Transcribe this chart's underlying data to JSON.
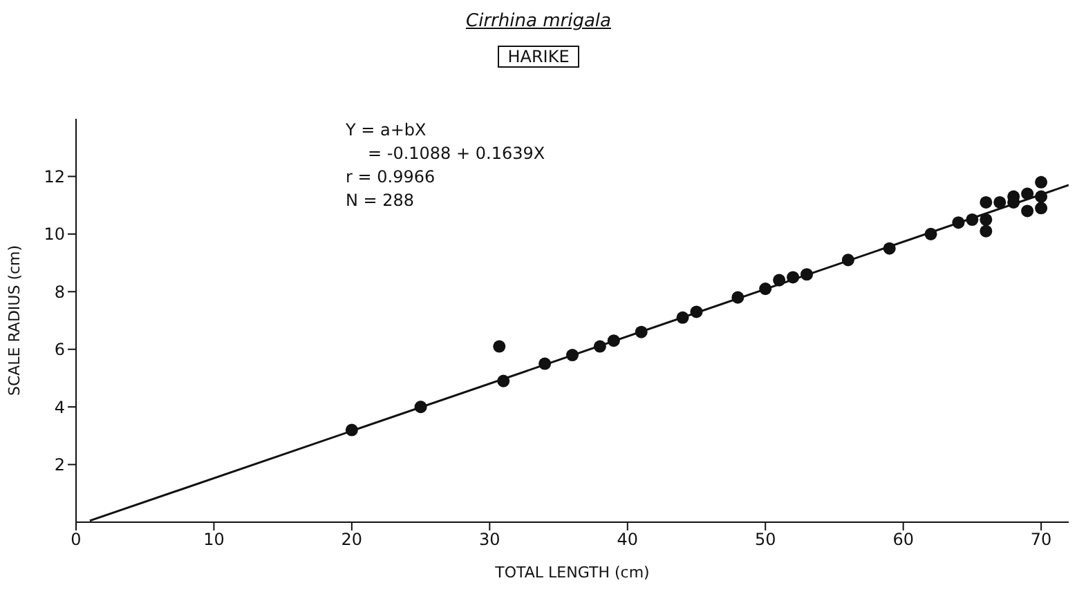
{
  "chart_data": {
    "type": "scatter",
    "title": "Cirrhina mrigala",
    "subtitle": "HARIKE",
    "xlabel": "TOTAL LENGTH (cm)",
    "ylabel": "SCALE RADIUS (cm)",
    "annotations": [
      "Y = a+bX",
      "= -0.1088 + 0.1639X",
      "r = 0.9966",
      "N = 288"
    ],
    "xlim": [
      0,
      72
    ],
    "xticks": [
      0,
      10,
      20,
      30,
      40,
      50,
      60,
      70
    ],
    "ylim": [
      0,
      14
    ],
    "yticks": [
      2,
      4,
      6,
      8,
      10,
      12
    ],
    "grid": false,
    "series": [
      {
        "color": "#111111",
        "marker": "circle",
        "x": [
          20,
          25,
          30.7,
          31,
          34,
          36,
          38,
          39,
          41,
          44,
          45,
          48,
          50,
          51,
          52,
          53,
          56,
          59,
          62,
          64,
          65,
          66,
          66,
          66,
          67,
          68,
          68,
          69,
          69,
          70,
          70,
          70
        ],
        "values": [
          3.2,
          4.0,
          6.1,
          4.9,
          5.5,
          5.8,
          6.1,
          6.3,
          6.6,
          7.1,
          7.3,
          7.8,
          8.1,
          8.4,
          8.5,
          8.6,
          9.1,
          9.5,
          10.0,
          10.4,
          10.5,
          11.1,
          10.5,
          10.1,
          11.1,
          11.3,
          11.1,
          11.4,
          10.8,
          11.8,
          11.3,
          10.9
        ]
      },
      {
        "type": "line",
        "color": "#111111",
        "line_style": "solid",
        "marker": "none",
        "x": [
          1,
          72
        ],
        "values": [
          0.05,
          11.7
        ]
      }
    ]
  }
}
